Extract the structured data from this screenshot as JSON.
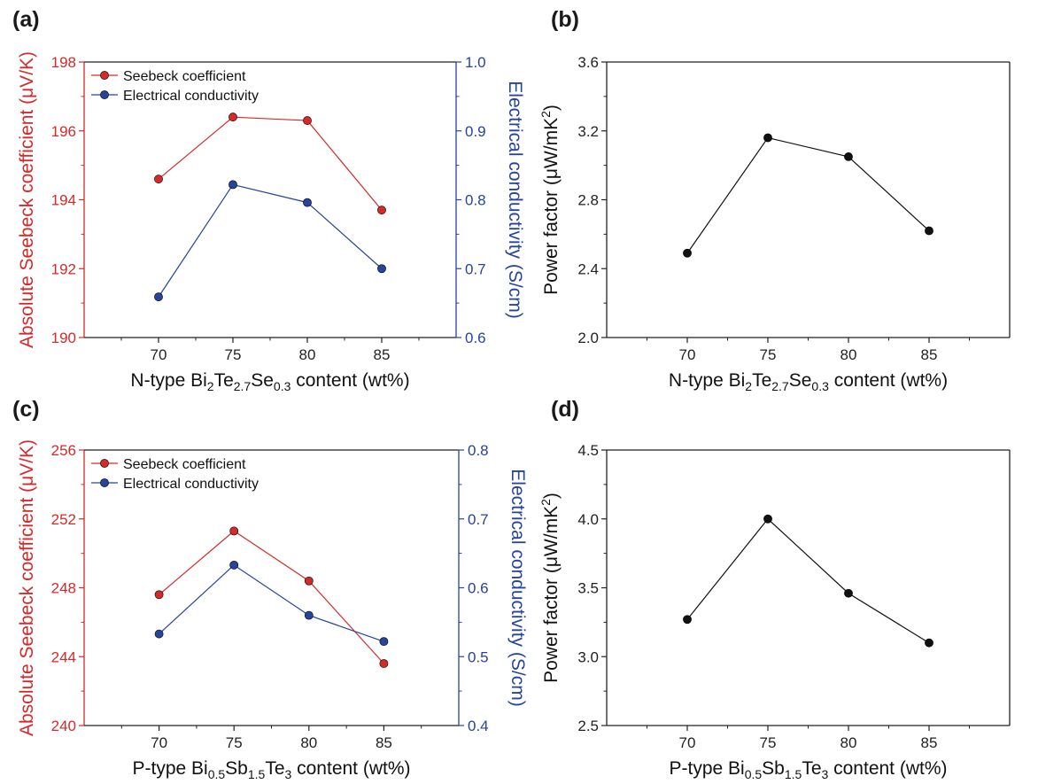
{
  "colors": {
    "seebeck": "#d42a2a",
    "conductivity": "#27449a",
    "power": "#111111",
    "axis": "#222222"
  },
  "chart_data": [
    {
      "panel": "(a)",
      "type": "line",
      "x": [
        70,
        75,
        80,
        85
      ],
      "xlim": [
        65,
        90
      ],
      "xticks": [
        "70",
        "75",
        "80",
        "85"
      ],
      "xlabel": {
        "pre": "N-type Bi",
        "s1": "2",
        "m1": "Te",
        "s2": "2.7",
        "m2": "Se",
        "s3": "0.3",
        "post": " content (wt%)"
      },
      "ylabel_left": "Absolute Seebeck coefficient (μV/K)",
      "ylim_left": [
        190,
        198
      ],
      "yticks_left": [
        "190",
        "192",
        "194",
        "196",
        "198"
      ],
      "ylabel_right": "Electrical conductivity (S/cm)",
      "ylim_right": [
        0.6,
        1.0
      ],
      "yticks_right": [
        "0.6",
        "0.7",
        "0.8",
        "0.9",
        "1.0"
      ],
      "legend": "top-left",
      "series": [
        {
          "name": "Seebeck coefficient",
          "axis": "left",
          "values": [
            194.6,
            196.4,
            196.3,
            193.7
          ]
        },
        {
          "name": "Electrical conductivity",
          "axis": "right",
          "values": [
            0.659,
            0.822,
            0.796,
            0.7
          ]
        }
      ]
    },
    {
      "panel": "(b)",
      "type": "line",
      "x": [
        70,
        75,
        80,
        85
      ],
      "xlim": [
        65,
        90
      ],
      "xticks": [
        "70",
        "75",
        "80",
        "85"
      ],
      "xlabel": {
        "pre": "N-type Bi",
        "s1": "2",
        "m1": "Te",
        "s2": "2.7",
        "m2": "Se",
        "s3": "0.3",
        "post": " content (wt%)"
      },
      "ylabel_left": {
        "pre": "Power factor (μW/mK",
        "sup": "2",
        "post": ")"
      },
      "ylim_left": [
        2.0,
        3.6
      ],
      "yticks_left": [
        "2.0",
        "2.4",
        "2.8",
        "3.2",
        "3.6"
      ],
      "series": [
        {
          "axis": "left",
          "values": [
            2.49,
            3.16,
            3.05,
            2.62
          ]
        }
      ]
    },
    {
      "panel": "(c)",
      "type": "line",
      "x": [
        70,
        75,
        80,
        85
      ],
      "xlim": [
        65,
        90
      ],
      "xticks": [
        "70",
        "75",
        "80",
        "85"
      ],
      "xlabel": {
        "pre": "P-type Bi",
        "s1": "0.5",
        "m1": "Sb",
        "s2": "1.5",
        "m2": "Te",
        "s3": "3",
        "post": " content (wt%)"
      },
      "ylabel_left": "Absolute Seebeck coefficient (μV/K)",
      "ylim_left": [
        240,
        256
      ],
      "yticks_left": [
        "240",
        "244",
        "248",
        "252",
        "256"
      ],
      "ylabel_right": "Electrical conductivity (S/cm)",
      "ylim_right": [
        0.4,
        0.8
      ],
      "yticks_right": [
        "0.4",
        "0.5",
        "0.6",
        "0.7",
        "0.8"
      ],
      "legend": "top-left",
      "series": [
        {
          "name": "Seebeck coefficient",
          "axis": "left",
          "values": [
            247.6,
            251.3,
            248.4,
            243.6
          ]
        },
        {
          "name": "Electrical conductivity",
          "axis": "right",
          "values": [
            0.533,
            0.633,
            0.56,
            0.522
          ]
        }
      ]
    },
    {
      "panel": "(d)",
      "type": "line",
      "x": [
        70,
        75,
        80,
        85
      ],
      "xlim": [
        65,
        90
      ],
      "xticks": [
        "70",
        "75",
        "80",
        "85"
      ],
      "xlabel": {
        "pre": "P-type Bi",
        "s1": "0.5",
        "m1": "Sb",
        "s2": "1.5",
        "m2": "Te",
        "s3": "3",
        "post": " content (wt%)"
      },
      "ylabel_left": {
        "pre": "Power factor (μW/mK",
        "sup": "2",
        "post": ")"
      },
      "ylim_left": [
        2.5,
        4.5
      ],
      "yticks_left": [
        "2.5",
        "3.0",
        "3.5",
        "4.0",
        "4.5"
      ],
      "series": [
        {
          "axis": "left",
          "values": [
            3.27,
            4.0,
            3.46,
            3.1
          ]
        }
      ]
    }
  ]
}
